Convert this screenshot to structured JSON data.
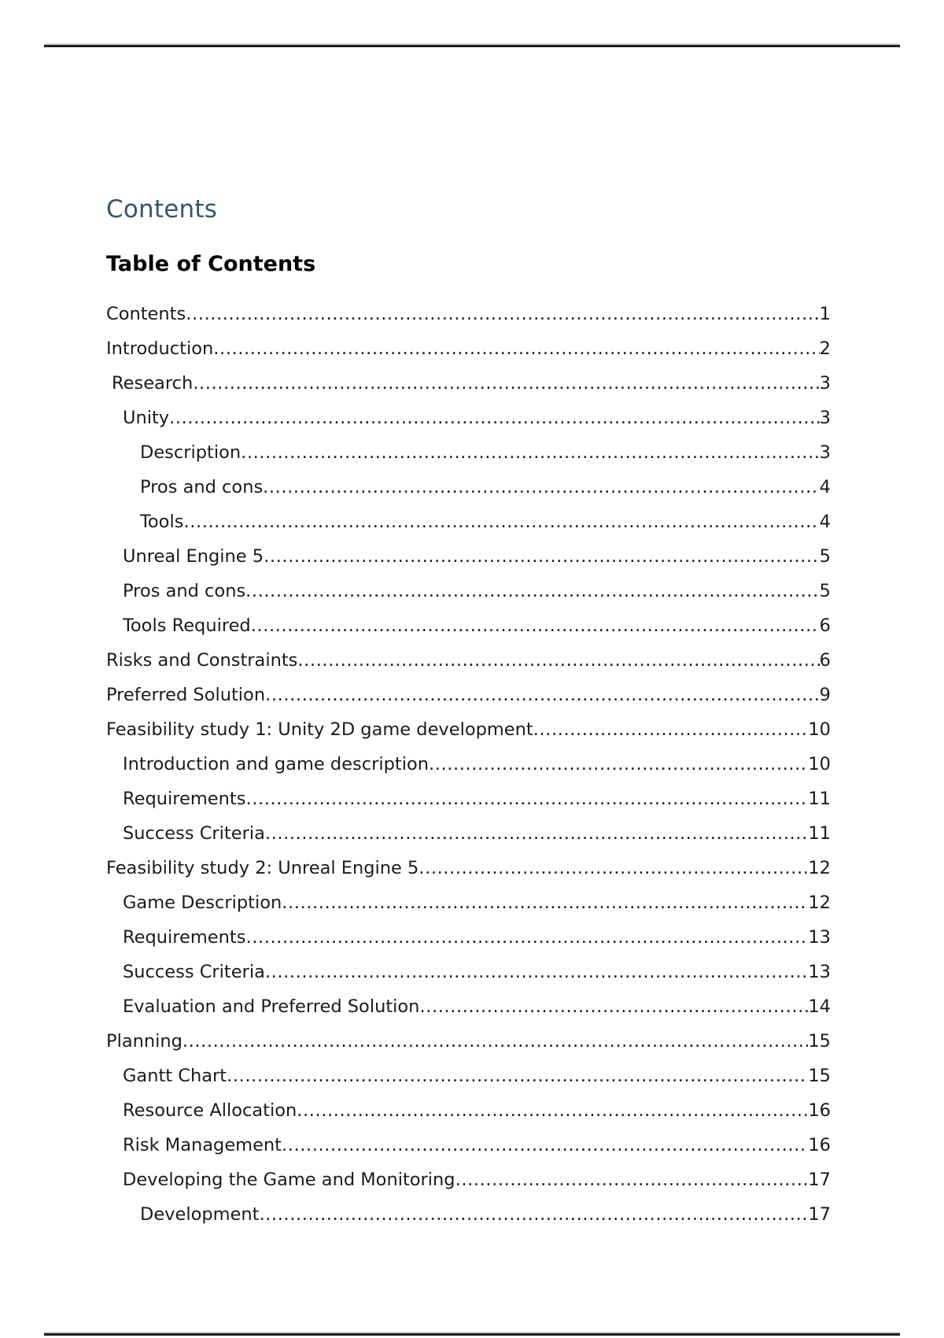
{
  "document": {
    "heading": "Contents",
    "toc_title": "Table of Contents",
    "heading_color": "#36566b",
    "rule_color": "#1d1d1f"
  },
  "toc": {
    "entries": [
      {
        "label": "Contents",
        "page": "1",
        "level": 0
      },
      {
        "label": "Introduction",
        "page": "2",
        "level": 0
      },
      {
        "label": "Research",
        "page": "3",
        "level": 1
      },
      {
        "label": "Unity",
        "page": "3",
        "level": 2
      },
      {
        "label": "Description",
        "page": "3",
        "level": 3
      },
      {
        "label": "Pros and cons",
        "page": "4",
        "level": 3
      },
      {
        "label": "Tools",
        "page": "4",
        "level": 3
      },
      {
        "label": "Unreal Engine 5",
        "page": "5",
        "level": 2
      },
      {
        "label": "Pros and cons",
        "page": "5",
        "level": 2
      },
      {
        "label": "Tools Required",
        "page": "6",
        "level": 2
      },
      {
        "label": "Risks and Constraints",
        "page": "6",
        "level": 0
      },
      {
        "label": "Preferred Solution",
        "page": "9",
        "level": 0
      },
      {
        "label": "Feasibility study 1: Unity 2D game development",
        "page": "10",
        "level": 0
      },
      {
        "label": "Introduction and game description",
        "page": "10",
        "level": 2
      },
      {
        "label": "Requirements",
        "page": "11",
        "level": 2
      },
      {
        "label": "Success Criteria",
        "page": "11",
        "level": 2
      },
      {
        "label": "Feasibility study 2: Unreal Engine 5",
        "page": "12",
        "level": 0
      },
      {
        "label": "Game Description",
        "page": "12",
        "level": 2
      },
      {
        "label": "Requirements",
        "page": "13",
        "level": 2
      },
      {
        "label": "Success Criteria",
        "page": "13",
        "level": 2
      },
      {
        "label": "Evaluation and Preferred Solution",
        "page": "14",
        "level": 2
      },
      {
        "label": "Planning",
        "page": "15",
        "level": 0
      },
      {
        "label": "Gantt Chart",
        "page": "15",
        "level": 2
      },
      {
        "label": "Resource Allocation",
        "page": "16",
        "level": 2
      },
      {
        "label": "Risk Management",
        "page": "16",
        "level": 2
      },
      {
        "label": "Developing the Game and Monitoring",
        "page": "17",
        "level": 2
      },
      {
        "label": "Development",
        "page": "17",
        "level": 3
      }
    ]
  }
}
